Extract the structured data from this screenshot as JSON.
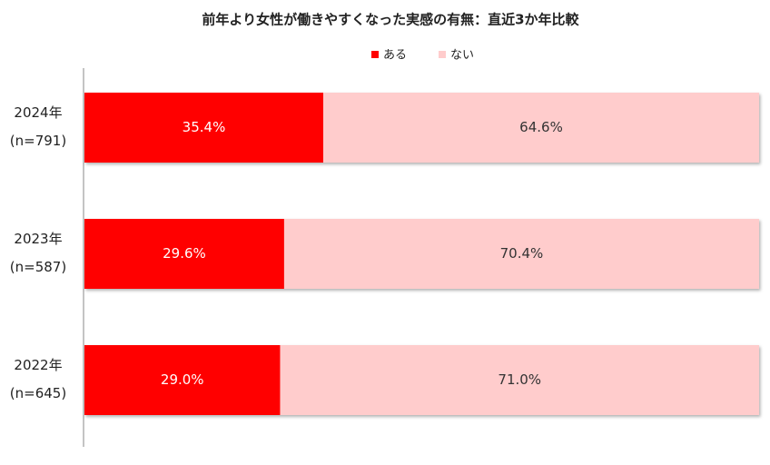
{
  "chart_data": {
    "type": "stacked_barh",
    "title": "前年より女性が働きやすくなった実感の有無：直近3か年比較",
    "categories": [
      "2024年",
      "2023年",
      "2022年"
    ],
    "category_notes": [
      "(n=791)",
      "(n=587)",
      "(n=645)"
    ],
    "series": [
      {
        "name": "ある",
        "color": "#ff0000",
        "values": [
          35.4,
          29.6,
          29.0
        ],
        "value_labels": [
          "35.4%",
          "29.6%",
          "29.0%"
        ]
      },
      {
        "name": "ない",
        "color": "#ffcccc",
        "values": [
          64.6,
          70.4,
          71.0
        ],
        "value_labels": [
          "64.6%",
          "70.4%",
          "71.0%"
        ]
      }
    ],
    "xlim": [
      0,
      100
    ],
    "legend": "top"
  }
}
